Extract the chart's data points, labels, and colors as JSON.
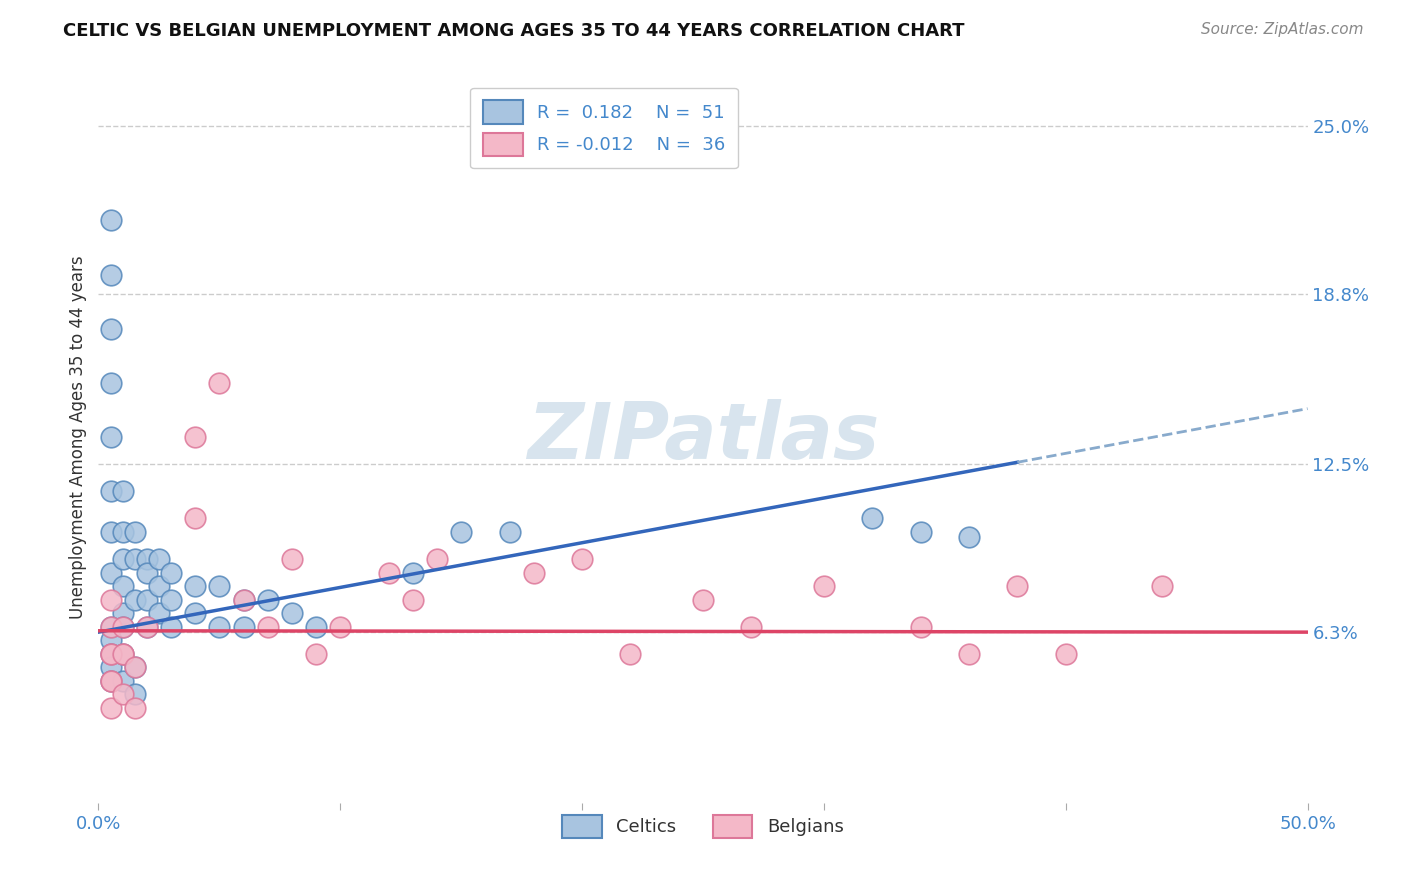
{
  "title": "CELTIC VS BELGIAN UNEMPLOYMENT AMONG AGES 35 TO 44 YEARS CORRELATION CHART",
  "source": "Source: ZipAtlas.com",
  "ylabel": "Unemployment Among Ages 35 to 44 years",
  "xlim": [
    0.0,
    0.5
  ],
  "ylim": [
    0.0,
    0.27
  ],
  "xticks": [
    0.0,
    0.1,
    0.2,
    0.3,
    0.4,
    0.5
  ],
  "xtick_labels": [
    "0.0%",
    "",
    "",
    "",
    "",
    "50.0%"
  ],
  "ytick_labels_right": [
    "25.0%",
    "18.8%",
    "12.5%",
    "6.3%"
  ],
  "ytick_positions_right": [
    0.25,
    0.188,
    0.125,
    0.063
  ],
  "watermark": "ZIPatlas",
  "legend_r1": "R =  0.182",
  "legend_n1": "N =  51",
  "legend_r2": "R = -0.012",
  "legend_n2": "N =  36",
  "celtic_color": "#a8c4e0",
  "celtic_edge": "#5588bb",
  "belgian_color": "#f4b8c8",
  "belgian_edge": "#dd7799",
  "trendline_celtic_solid_color": "#3366bb",
  "trendline_celtic_dashed_color": "#88aacc",
  "trendline_belgian_color": "#dd4466",
  "background_color": "#ffffff",
  "grid_color": "#cccccc",
  "title_color": "#111111",
  "source_color": "#888888",
  "axis_label_color": "#333333",
  "tick_label_color": "#4488cc",
  "solid_line_x_end": 0.38,
  "celtic_trendline_intercept": 0.063,
  "celtic_trendline_slope": 0.165,
  "belgian_trendline_intercept": 0.0635,
  "belgian_trendline_slope": -0.001,
  "celtic_scatter_x": [
    0.005,
    0.005,
    0.005,
    0.005,
    0.005,
    0.005,
    0.005,
    0.005,
    0.01,
    0.01,
    0.01,
    0.01,
    0.01,
    0.01,
    0.015,
    0.015,
    0.015,
    0.02,
    0.02,
    0.02,
    0.02,
    0.025,
    0.025,
    0.025,
    0.03,
    0.03,
    0.03,
    0.04,
    0.04,
    0.05,
    0.05,
    0.06,
    0.06,
    0.07,
    0.08,
    0.09,
    0.13,
    0.15,
    0.17,
    0.32,
    0.34,
    0.36,
    0.005,
    0.005,
    0.005,
    0.005,
    0.005,
    0.01,
    0.01,
    0.015,
    0.015
  ],
  "celtic_scatter_y": [
    0.215,
    0.195,
    0.175,
    0.155,
    0.135,
    0.115,
    0.1,
    0.085,
    0.115,
    0.1,
    0.09,
    0.08,
    0.07,
    0.065,
    0.1,
    0.09,
    0.075,
    0.09,
    0.085,
    0.075,
    0.065,
    0.09,
    0.08,
    0.07,
    0.085,
    0.075,
    0.065,
    0.08,
    0.07,
    0.08,
    0.065,
    0.075,
    0.065,
    0.075,
    0.07,
    0.065,
    0.085,
    0.1,
    0.1,
    0.105,
    0.1,
    0.098,
    0.065,
    0.06,
    0.055,
    0.05,
    0.045,
    0.055,
    0.045,
    0.05,
    0.04
  ],
  "belgian_scatter_x": [
    0.005,
    0.005,
    0.005,
    0.005,
    0.005,
    0.01,
    0.01,
    0.02,
    0.04,
    0.04,
    0.05,
    0.06,
    0.07,
    0.08,
    0.09,
    0.1,
    0.12,
    0.13,
    0.14,
    0.18,
    0.2,
    0.22,
    0.25,
    0.27,
    0.3,
    0.34,
    0.36,
    0.38,
    0.4,
    0.44,
    0.005,
    0.005,
    0.01,
    0.01,
    0.015,
    0.015
  ],
  "belgian_scatter_y": [
    0.075,
    0.065,
    0.055,
    0.045,
    0.035,
    0.065,
    0.055,
    0.065,
    0.135,
    0.105,
    0.155,
    0.075,
    0.065,
    0.09,
    0.055,
    0.065,
    0.085,
    0.075,
    0.09,
    0.085,
    0.09,
    0.055,
    0.075,
    0.065,
    0.08,
    0.065,
    0.055,
    0.08,
    0.055,
    0.08,
    0.055,
    0.045,
    0.055,
    0.04,
    0.05,
    0.035
  ]
}
